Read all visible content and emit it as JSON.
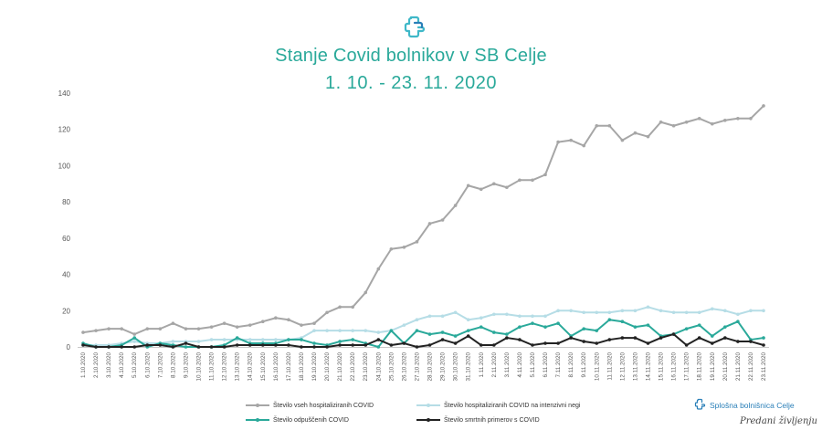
{
  "title": "Stanje Covid bolnikov v SB Celje",
  "subtitle": "1. 10. - 23. 11. 2020",
  "brand": {
    "name": "Splošna bolnišnica Celje",
    "tagline": "Predani življenju",
    "logo_icon": "hospital-cross-icon"
  },
  "colors": {
    "title": "#2aa99a",
    "total": "#a6a6a6",
    "icu": "#b6dde6",
    "discharged": "#2aa99a",
    "deaths": "#222222",
    "brand": "#2a7fb8"
  },
  "chart_data": {
    "type": "line",
    "title": "Stanje Covid bolnikov v SB Celje",
    "subtitle": "1. 10. - 23. 11. 2020",
    "ylim": [
      0,
      140
    ],
    "yticks": [
      0,
      20,
      40,
      60,
      80,
      100,
      120,
      140
    ],
    "grid": false,
    "legend_position": "bottom",
    "categories": [
      "1.10.2020",
      "2.10.2020",
      "3.10.2020",
      "4.10.2020",
      "5.10.2020",
      "6.10.2020",
      "7.10.2020",
      "8.10.2020",
      "9.10.2020",
      "10.10.2020",
      "11.10.2020",
      "12.10.2020",
      "13.10.2020",
      "14.10.2020",
      "15.10.2020",
      "16.10.2020",
      "17.10.2020",
      "18.10.2020",
      "19.10.2020",
      "20.10.2020",
      "21.10.2020",
      "22.10.2020",
      "23.10.2020",
      "24.10.2020",
      "25.10.2020",
      "26.10.2020",
      "27.10.2020",
      "28.10.2020",
      "29.10.2020",
      "30.10.2020",
      "31.10.2020",
      "1.11.2020",
      "2.11.2020",
      "3.11.2020",
      "4.11.2020",
      "5.11.2020",
      "6.11.2020",
      "7.11.2020",
      "8.11.2020",
      "9.11.2020",
      "10.11.2020",
      "11.11.2020",
      "12.11.2020",
      "13.11.2020",
      "14.11.2020",
      "15.11.2020",
      "16.11.2020",
      "17.11.2020",
      "18.11.2020",
      "19.11.2020",
      "20.11.2020",
      "21.11.2020",
      "22.11.2020",
      "23.11.2020"
    ],
    "series": [
      {
        "name": "Število vseh hospitaliziranih COVID",
        "color": "#a6a6a6",
        "values": [
          8,
          9,
          10,
          10,
          7,
          10,
          10,
          13,
          10,
          10,
          11,
          13,
          11,
          12,
          14,
          16,
          15,
          12,
          13,
          19,
          22,
          22,
          30,
          43,
          54,
          55,
          58,
          68,
          70,
          78,
          89,
          87,
          90,
          88,
          92,
          92,
          95,
          113,
          114,
          111,
          122,
          122,
          114,
          118,
          116,
          124,
          122,
          124,
          126,
          123,
          125,
          126,
          126,
          133
        ]
      },
      {
        "name": "Število hospitaliziranih COVID na intenzivni negi",
        "color": "#b6dde6",
        "values": [
          1,
          1,
          1,
          2,
          3,
          2,
          2,
          3,
          3,
          3,
          4,
          4,
          4,
          4,
          4,
          4,
          4,
          5,
          9,
          9,
          9,
          9,
          9,
          8,
          9,
          12,
          15,
          17,
          17,
          19,
          15,
          16,
          18,
          18,
          17,
          17,
          17,
          20,
          20,
          19,
          19,
          19,
          20,
          20,
          22,
          20,
          19,
          19,
          19,
          21,
          20,
          18,
          20,
          20
        ]
      },
      {
        "name": "Število odpuščenih COVID",
        "color": "#2aa99a",
        "values": [
          2,
          0,
          0,
          1,
          5,
          0,
          2,
          1,
          0,
          0,
          0,
          1,
          5,
          2,
          2,
          2,
          4,
          4,
          2,
          1,
          3,
          4,
          2,
          0,
          9,
          2,
          9,
          7,
          8,
          6,
          9,
          11,
          8,
          7,
          11,
          13,
          11,
          13,
          6,
          10,
          9,
          15,
          14,
          11,
          12,
          6,
          7,
          10,
          12,
          6,
          11,
          14,
          4,
          5
        ]
      },
      {
        "name": "Število smrtnih primerov  s COVID",
        "color": "#222222",
        "values": [
          1,
          0,
          0,
          0,
          0,
          1,
          1,
          0,
          2,
          0,
          0,
          0,
          1,
          1,
          1,
          1,
          1,
          0,
          0,
          0,
          1,
          1,
          1,
          4,
          1,
          2,
          0,
          1,
          4,
          2,
          6,
          1,
          1,
          5,
          4,
          1,
          2,
          2,
          5,
          3,
          2,
          4,
          5,
          5,
          2,
          5,
          7,
          1,
          5,
          2,
          5,
          3,
          3,
          1
        ]
      }
    ]
  }
}
